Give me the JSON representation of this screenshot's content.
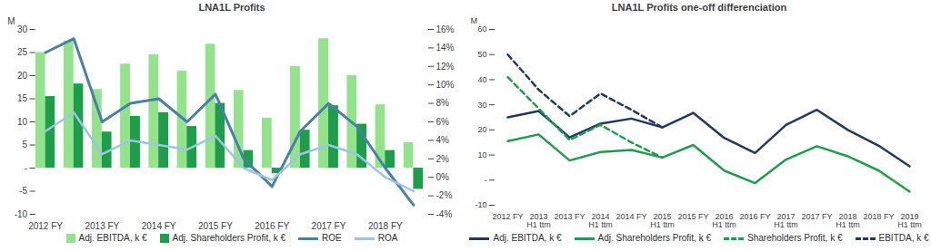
{
  "chart_data": [
    {
      "type": "bar",
      "title": "LNA1L Profits",
      "categories": [
        "2012 FY",
        null,
        "2013 FY",
        null,
        "2014 FY",
        null,
        "2015 FY",
        null,
        "2016 FY",
        null,
        "2017 FY",
        null,
        "2018 FY",
        null
      ],
      "ylabel": "M",
      "ylim": [
        -10,
        30
      ],
      "yticks": [
        -10,
        -5,
        {
          "value": 0,
          "label": "-"
        },
        5,
        10,
        15,
        20,
        25,
        30
      ],
      "y2lim": [
        -4,
        16
      ],
      "y2ticks": [
        {
          "value": -4,
          "label": "-4%"
        },
        {
          "value": -2,
          "label": "-2%"
        },
        {
          "value": 0,
          "label": "0%"
        },
        {
          "value": 2,
          "label": "2%"
        },
        {
          "value": 4,
          "label": "4%"
        },
        {
          "value": 6,
          "label": "6%"
        },
        {
          "value": 8,
          "label": "8%"
        },
        {
          "value": 10,
          "label": "10%"
        },
        {
          "value": 12,
          "label": "12%"
        },
        {
          "value": 14,
          "label": "14%"
        },
        {
          "value": 16,
          "label": "16%"
        }
      ],
      "series": [
        {
          "name": "Adj. EBITDA, k €",
          "type": "bar",
          "color": "#92e38c",
          "values": [
            25,
            27.5,
            17,
            22.5,
            24.5,
            21,
            26.8,
            16.8,
            10.8,
            22,
            28,
            20,
            13.7,
            5.5
          ]
        },
        {
          "name": "Adj. Shareholders Profit, k €",
          "type": "bar",
          "color": "#1e9e4a",
          "values": [
            15.5,
            18.2,
            7.8,
            11.2,
            12,
            9,
            14,
            3.8,
            -1.2,
            8.2,
            13.5,
            9.5,
            3.8,
            -4.6
          ]
        },
        {
          "name": "ROE",
          "type": "line",
          "axis": "y2",
          "color": "#4a7fa6",
          "values": [
            13.5,
            15,
            6,
            8,
            8.5,
            6,
            9,
            2,
            -1,
            5,
            8,
            5.5,
            1,
            -3
          ]
        },
        {
          "name": "ROA",
          "type": "line",
          "axis": "y2",
          "color": "#9cc5e3",
          "values": [
            5,
            7,
            2.5,
            4,
            3.5,
            3,
            4.5,
            1,
            -0.3,
            2.5,
            3.5,
            2.5,
            0,
            -1.5
          ]
        }
      ],
      "legend": "bottom",
      "grid": false
    },
    {
      "type": "line",
      "title": "LNA1L Profits one-off differenciation",
      "categories": [
        "2012 FY",
        "2013\nH1 ttm",
        "2013 FY",
        "2014\nH1 ttm",
        "2014 FY",
        "2015\nH1 ttm",
        "2015 FY",
        "2016\nH1 ttm",
        "2016 FY",
        "2017\nH1 ttm",
        "2017 FY",
        "2018\nH1 ttm",
        "2018 FY",
        "2019\nH1 ttm"
      ],
      "ylabel": "M",
      "ylim": [
        -10,
        60
      ],
      "yticks": [
        -10,
        {
          "value": 0,
          "label": "-"
        },
        10,
        20,
        30,
        40,
        50,
        60
      ],
      "series": [
        {
          "name": "Adj. EBITDA, k €",
          "color": "#1f3864",
          "line_style": "solid",
          "values": [
            25,
            27.5,
            17,
            22.5,
            24.5,
            21,
            26.8,
            16.8,
            10.8,
            22,
            28,
            20,
            13.7,
            5.5
          ]
        },
        {
          "name": "Adj. Shareholders Profit, k €",
          "color": "#1e9e4a",
          "line_style": "solid",
          "values": [
            15.5,
            18.2,
            7.8,
            11.2,
            12,
            9,
            14,
            3.8,
            -1.2,
            8.2,
            13.5,
            9.5,
            3.8,
            -4.6
          ]
        },
        {
          "name": "Shareholders Profit, k €",
          "color": "#1e9e4a",
          "line_style": "dashed",
          "values": [
            41,
            28.5,
            16,
            22,
            15,
            9,
            null,
            null,
            null,
            null,
            null,
            null,
            null,
            null
          ]
        },
        {
          "name": "EBITDA, k €",
          "color": "#1f3864",
          "line_style": "dashed",
          "values": [
            50,
            36,
            25.5,
            34.5,
            28,
            21,
            null,
            null,
            null,
            null,
            null,
            null,
            null,
            null
          ]
        }
      ],
      "legend": "bottom",
      "grid": false
    }
  ]
}
